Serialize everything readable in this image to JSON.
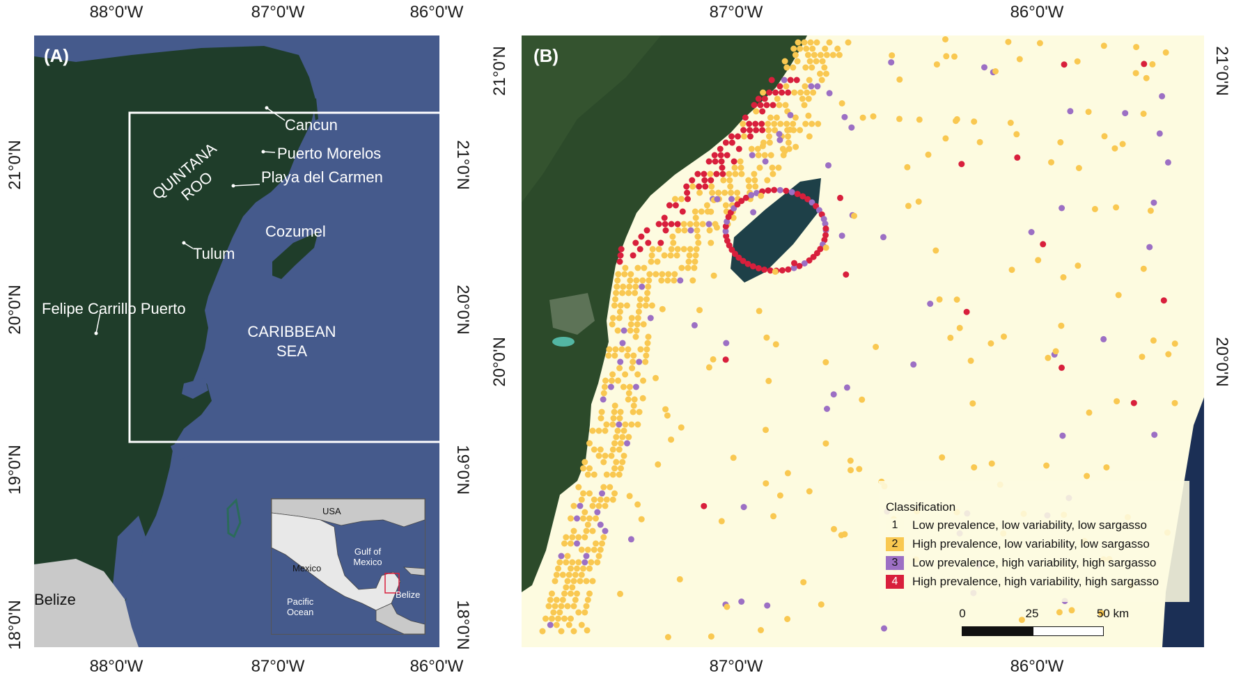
{
  "panel_a": {
    "label": "(A)",
    "top_ticks": [
      "88°0'W",
      "87°0'W",
      "86°0'W"
    ],
    "bottom_ticks": [
      "88°0'W",
      "87°0'W",
      "86°0'W"
    ],
    "left_ticks": [
      "21°0'N",
      "20°0'N",
      "19°0'N",
      "18°0'N"
    ],
    "right_ticks": [
      "21°0'N",
      "20°0'N",
      "19°0'N",
      "18°0'N"
    ],
    "places": {
      "cancun": "Cancun",
      "puerto_morelos": "Puerto Morelos",
      "playa": "Playa del Carmen",
      "cozumel": "Cozumel",
      "tulum": "Tulum",
      "felipe": "Felipe Carrillo Puerto",
      "belize": "Belize"
    },
    "state_label": [
      "QUINTANA",
      "ROO"
    ],
    "sea_label": [
      "CARIBBEAN",
      "SEA"
    ],
    "inset": {
      "usa": "USA",
      "gulf": [
        "Gulf of",
        "Mexico"
      ],
      "mexico": "Mexico",
      "pacific": [
        "Pacific",
        "Ocean"
      ],
      "belize": "Belize"
    },
    "colors": {
      "sea": "#455a8c",
      "land": "#1f3d2a",
      "other_land": "#c9c9c9",
      "box": "#ffffff"
    }
  },
  "panel_b": {
    "label": "(B)",
    "top_ticks": [
      "87°0'W",
      "86°0'W"
    ],
    "bottom_ticks": [
      "87°0'W",
      "86°0'W"
    ],
    "left_ticks": [
      "21°0'N",
      "20°0'N"
    ],
    "right_ticks": [
      "21°0'N",
      "20°0'N"
    ],
    "legend": {
      "title": "Classification",
      "items": [
        {
          "code": "1",
          "label": "Low prevalence, low variability, low sargasso",
          "color": "#fdfbe0"
        },
        {
          "code": "2",
          "label": "High prevalence, low variability, low sargasso",
          "color": "#f9c851"
        },
        {
          "code": "3",
          "label": "Low prevalence, high variability, high sargasso",
          "color": "#9c6fc4"
        },
        {
          "code": "4",
          "label": "High prevalence, high variability, high sargasso",
          "color": "#d81f3c"
        }
      ]
    },
    "scale": {
      "labels": [
        "0",
        "25",
        "50 km"
      ]
    }
  }
}
